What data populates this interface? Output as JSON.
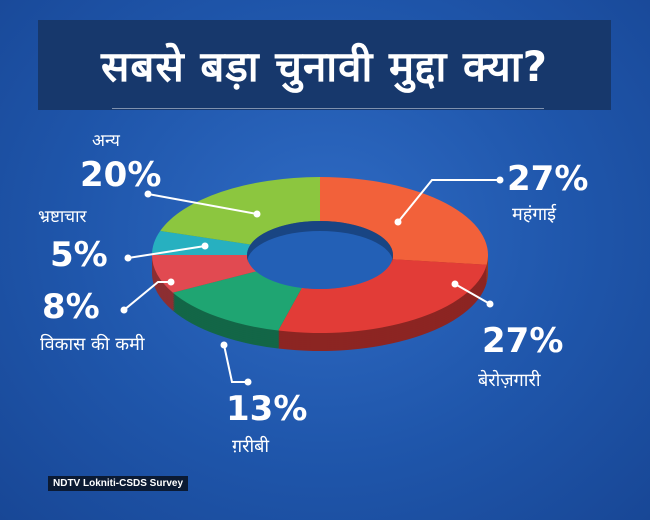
{
  "title": "सबसे बड़ा चुनावी मुद्दा क्या?",
  "source": "NDTV Lokniti-CSDS Survey",
  "chart_data": {
    "type": "pie",
    "title": "सबसे बड़ा चुनावी मुद्दा क्या?",
    "unit": "%",
    "slices": [
      {
        "label": "महंगाई",
        "value": 27,
        "display": "27%",
        "color": "#f2613a"
      },
      {
        "label": "बेरोज़गारी",
        "value": 27,
        "display": "27%",
        "color": "#e23c37"
      },
      {
        "label": "ग़रीबी",
        "value": 13,
        "display": "13%",
        "color": "#1fa572"
      },
      {
        "label": "विकास की कमी",
        "value": 8,
        "display": "8%",
        "color": "#e14a51"
      },
      {
        "label": "भ्रष्टाचार",
        "value": 5,
        "display": "5%",
        "color": "#27b0c0"
      },
      {
        "label": "अन्य",
        "value": 20,
        "display": "20%",
        "color": "#8cc63f"
      }
    ]
  }
}
